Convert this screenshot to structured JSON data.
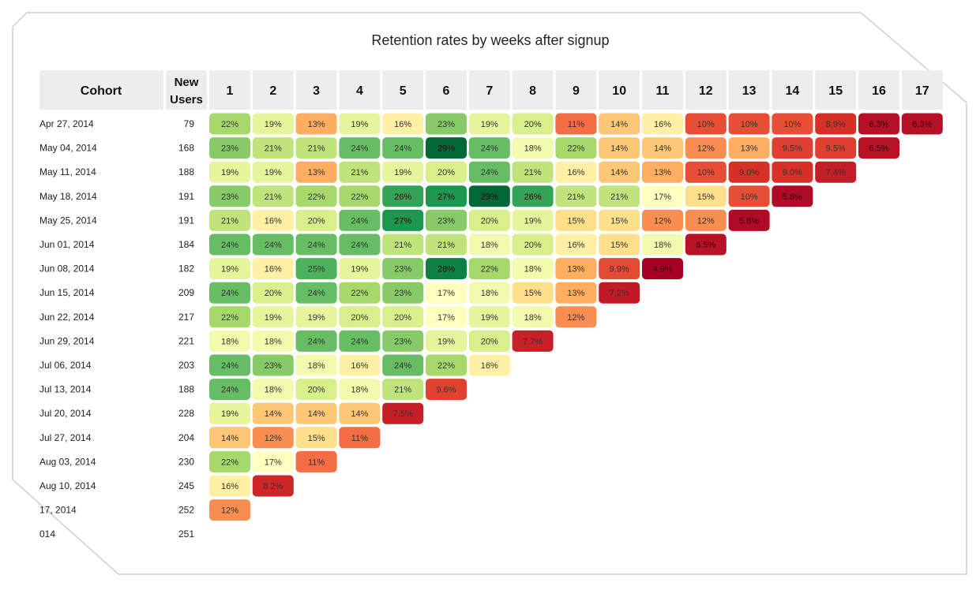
{
  "chart_data": {
    "type": "heatmap",
    "title": "Retention rates by weeks after signup",
    "header": {
      "cohort_label": "Cohort",
      "users_label_line1": "New",
      "users_label_line2": "Users"
    },
    "weeks": [
      "1",
      "2",
      "3",
      "4",
      "5",
      "6",
      "7",
      "8",
      "9",
      "10",
      "11",
      "12",
      "13",
      "14",
      "15",
      "16",
      "17"
    ],
    "cohorts": [
      {
        "label": "Apr 27, 2014",
        "users": "79",
        "values": [
          22,
          19,
          13,
          19,
          16,
          23,
          19,
          20,
          11,
          14,
          16,
          10,
          10,
          10,
          8.9,
          6.3,
          6.3
        ],
        "labels": [
          "22%",
          "19%",
          "13%",
          "19%",
          "16%",
          "23%",
          "19%",
          "20%",
          "11%",
          "14%",
          "16%",
          "10%",
          "10%",
          "10%",
          "8.9%",
          "6.3%",
          "6.3%"
        ]
      },
      {
        "label": "May 04, 2014",
        "users": "168",
        "values": [
          23,
          21,
          21,
          24,
          24,
          29,
          24,
          18,
          22,
          14,
          14,
          12,
          13,
          9.5,
          9.5,
          6.5
        ],
        "labels": [
          "23%",
          "21%",
          "21%",
          "24%",
          "24%",
          "29%",
          "24%",
          "18%",
          "22%",
          "14%",
          "14%",
          "12%",
          "13%",
          "9.5%",
          "9.5%",
          "6.5%"
        ]
      },
      {
        "label": "May 11, 2014",
        "users": "188",
        "values": [
          19,
          19,
          13,
          21,
          19,
          20,
          24,
          21,
          16,
          14,
          13,
          10,
          9.0,
          9.0,
          7.4
        ],
        "labels": [
          "19%",
          "19%",
          "13%",
          "21%",
          "19%",
          "20%",
          "24%",
          "21%",
          "16%",
          "14%",
          "13%",
          "10%",
          "9.0%",
          "9.0%",
          "7.4%"
        ]
      },
      {
        "label": "May 18, 2014",
        "users": "191",
        "values": [
          23,
          21,
          22,
          22,
          26,
          27,
          29,
          26,
          21,
          21,
          17,
          15,
          10,
          5.8
        ],
        "labels": [
          "23%",
          "21%",
          "22%",
          "22%",
          "26%",
          "27%",
          "29%",
          "26%",
          "21%",
          "21%",
          "17%",
          "15%",
          "10%",
          "5.8%"
        ]
      },
      {
        "label": "May 25, 2014",
        "users": "191",
        "values": [
          21,
          16,
          20,
          24,
          27,
          23,
          20,
          19,
          15,
          15,
          12,
          12,
          5.8
        ],
        "labels": [
          "21%",
          "16%",
          "20%",
          "24%",
          "27%",
          "23%",
          "20%",
          "19%",
          "15%",
          "15%",
          "12%",
          "12%",
          "5.8%"
        ]
      },
      {
        "label": "Jun 01, 2014",
        "users": "184",
        "values": [
          24,
          24,
          24,
          24,
          21,
          21,
          18,
          20,
          16,
          15,
          18,
          6.5
        ],
        "labels": [
          "24%",
          "24%",
          "24%",
          "24%",
          "21%",
          "21%",
          "18%",
          "20%",
          "16%",
          "15%",
          "18%",
          "6.5%"
        ]
      },
      {
        "label": "Jun 08, 2014",
        "users": "182",
        "values": [
          19,
          16,
          25,
          19,
          23,
          28,
          22,
          18,
          13,
          9.9,
          4.9
        ],
        "labels": [
          "19%",
          "16%",
          "25%",
          "19%",
          "23%",
          "28%",
          "22%",
          "18%",
          "13%",
          "9.9%",
          "4.9%"
        ]
      },
      {
        "label": "Jun 15, 2014",
        "users": "209",
        "values": [
          24,
          20,
          24,
          22,
          23,
          17,
          18,
          15,
          13,
          7.2
        ],
        "labels": [
          "24%",
          "20%",
          "24%",
          "22%",
          "23%",
          "17%",
          "18%",
          "15%",
          "13%",
          "7.2%"
        ]
      },
      {
        "label": "Jun 22, 2014",
        "users": "217",
        "values": [
          22,
          19,
          19,
          20,
          20,
          17,
          19,
          18,
          12
        ],
        "labels": [
          "22%",
          "19%",
          "19%",
          "20%",
          "20%",
          "17%",
          "19%",
          "18%",
          "12%"
        ]
      },
      {
        "label": "Jun 29, 2014",
        "users": "221",
        "values": [
          18,
          18,
          24,
          24,
          23,
          19,
          20,
          7.7
        ],
        "labels": [
          "18%",
          "18%",
          "24%",
          "24%",
          "23%",
          "19%",
          "20%",
          "7.7%"
        ]
      },
      {
        "label": "Jul 06, 2014",
        "users": "203",
        "values": [
          24,
          23,
          18,
          16,
          24,
          22,
          16
        ],
        "labels": [
          "24%",
          "23%",
          "18%",
          "16%",
          "24%",
          "22%",
          "16%"
        ]
      },
      {
        "label": "Jul 13, 2014",
        "users": "188",
        "values": [
          24,
          18,
          20,
          18,
          21,
          9.6
        ],
        "labels": [
          "24%",
          "18%",
          "20%",
          "18%",
          "21%",
          "9.6%"
        ]
      },
      {
        "label": "Jul 20, 2014",
        "users": "228",
        "values": [
          19,
          14,
          14,
          14,
          7.5
        ],
        "labels": [
          "19%",
          "14%",
          "14%",
          "14%",
          "7.5%"
        ]
      },
      {
        "label": "Jul 27, 2014",
        "users": "204",
        "values": [
          14,
          12,
          15,
          11
        ],
        "labels": [
          "14%",
          "12%",
          "15%",
          "11%"
        ]
      },
      {
        "label": "Aug 03, 2014",
        "users": "230",
        "values": [
          22,
          17,
          11
        ],
        "labels": [
          "22%",
          "17%",
          "11%"
        ]
      },
      {
        "label": "Aug 10, 2014",
        "users": "245",
        "values": [
          16,
          8.2
        ],
        "labels": [
          "16%",
          "8.2%"
        ]
      },
      {
        "label": "17, 2014",
        "users": "252",
        "values": [
          12
        ],
        "labels": [
          "12%"
        ]
      },
      {
        "label": "014",
        "users": "251",
        "values": [],
        "labels": []
      }
    ],
    "color_scale": {
      "stops": [
        {
          "v": 5,
          "color": "#a50026"
        },
        {
          "v": 9,
          "color": "#d73027"
        },
        {
          "v": 11,
          "color": "#f46d43"
        },
        {
          "v": 13,
          "color": "#fdae61"
        },
        {
          "v": 15,
          "color": "#fee08b"
        },
        {
          "v": 17,
          "color": "#ffffbf"
        },
        {
          "v": 20,
          "color": "#d9ef8b"
        },
        {
          "v": 22,
          "color": "#a6d96a"
        },
        {
          "v": 24,
          "color": "#66bd63"
        },
        {
          "v": 27,
          "color": "#1a9850"
        },
        {
          "v": 29,
          "color": "#006837"
        }
      ],
      "header_bg": "#ededed"
    }
  }
}
